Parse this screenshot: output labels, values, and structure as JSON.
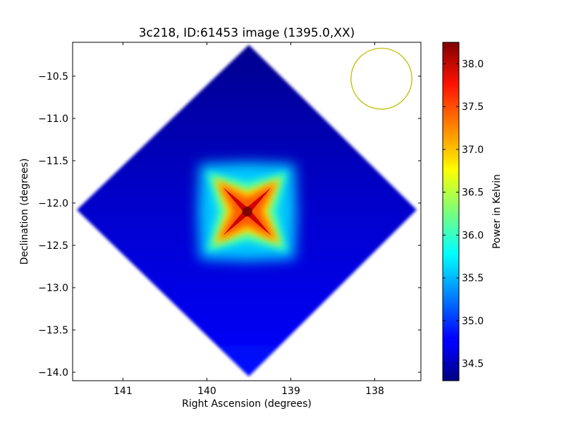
{
  "chart_data": {
    "type": "heatmap",
    "title": "3c218, ID:61453 image (1395.0,XX)",
    "xlabel": "Right Ascension (degrees)",
    "ylabel": "Declination (degrees)",
    "colorbar_label": "Power in Kelvin",
    "colormap": "jet",
    "xlim": [
      141.6,
      137.45
    ],
    "ylim": [
      -14.1,
      -10.1
    ],
    "x_ticks": [
      141,
      140,
      139,
      138
    ],
    "y_ticks": [
      -10.5,
      -11.0,
      -11.5,
      -12.0,
      -12.5,
      -13.0,
      -13.5,
      -14.0
    ],
    "y_tick_labels": [
      "−10.5",
      "−11.0",
      "−11.5",
      "−12.0",
      "−12.5",
      "−13.0",
      "−13.5",
      "−14.0"
    ],
    "color_range": [
      34.3,
      38.25
    ],
    "colorbar_ticks": [
      34.5,
      35.0,
      35.5,
      36.0,
      36.5,
      37.0,
      37.5,
      38.0
    ],
    "colorbar_tick_labels": [
      "34.5",
      "35.0",
      "35.5",
      "36.0",
      "36.5",
      "37.0",
      "37.5",
      "38.0"
    ],
    "field_center": {
      "ra": 139.5,
      "dec": -12.1
    },
    "field_corners": [
      {
        "ra": 139.5,
        "dec": -10.13
      },
      {
        "ra": 137.5,
        "dec": -12.08
      },
      {
        "ra": 139.5,
        "dec": -14.05
      },
      {
        "ra": 141.55,
        "dec": -12.08
      }
    ],
    "source_peak": {
      "ra": 139.52,
      "dec": -12.1,
      "value": 38.2
    },
    "background_level": 34.5,
    "beam": {
      "ra": 137.92,
      "dec": -10.53,
      "radius_deg": 0.36,
      "color": "#bfbf00"
    },
    "grid": false
  }
}
